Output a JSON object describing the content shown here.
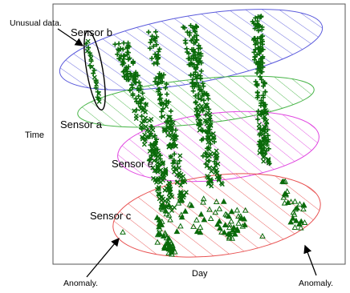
{
  "chart_data": {
    "type": "scatter",
    "xlabel": "Day",
    "ylabel": "Time",
    "colors": {
      "points": "#0a6a0a",
      "sensor_b": "#5a5adc",
      "sensor_a": "#46b446",
      "sensor_e": "#e046e0",
      "sensor_c": "#e85050",
      "plot_bg": "#ffffff",
      "axis": "#555555"
    },
    "groups": [
      {
        "name": "Sensor b",
        "color_key": "sensor_b",
        "hatch": "diagonal"
      },
      {
        "name": "Sensor a",
        "color_key": "sensor_a",
        "hatch": "diagonal"
      },
      {
        "name": "Sensor e",
        "color_key": "sensor_e",
        "hatch": "diagonal"
      },
      {
        "name": "Sensor c",
        "color_key": "sensor_c",
        "hatch": "diagonal"
      }
    ],
    "annotations": [
      {
        "text": "Unusual data.",
        "target": "ellipse around isolated points near Sensor b"
      },
      {
        "text": "Anomaly.",
        "target": "isolated triangle at left of Sensor c"
      },
      {
        "text": "Anomaly.",
        "target": "isolated triangle cluster at right of Sensor c"
      }
    ],
    "markers": [
      "plus",
      "cross",
      "triangle"
    ],
    "grid": false,
    "ticks": false
  }
}
